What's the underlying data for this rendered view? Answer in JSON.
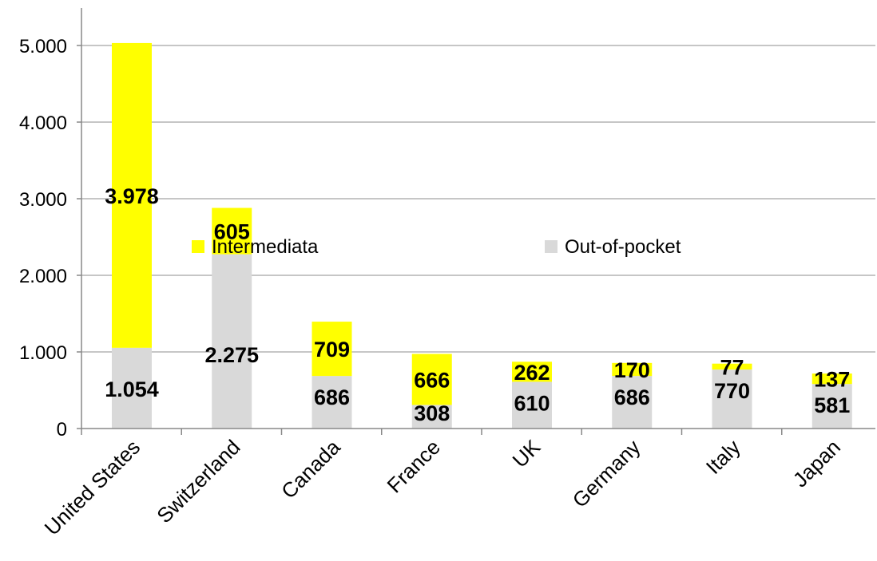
{
  "chart_data": {
    "type": "bar",
    "stacked": true,
    "categories": [
      "United States",
      "Switzerland",
      "Canada",
      "France",
      "UK",
      "Germany",
      "Italy",
      "Japan"
    ],
    "series": [
      {
        "name": "Out-of-pocket",
        "color": "#d9d9d9",
        "values": [
          1054,
          2275,
          686,
          308,
          610,
          686,
          770,
          581
        ],
        "labels": [
          "1.054",
          "2.275",
          "686",
          "308",
          "610",
          "686",
          "770",
          "581"
        ]
      },
      {
        "name": "Intermediata",
        "color": "#ffff00",
        "values": [
          3978,
          605,
          709,
          666,
          262,
          170,
          77,
          137
        ],
        "labels": [
          "3.978",
          "605",
          "709",
          "666",
          "262",
          "170",
          "77",
          "137"
        ]
      }
    ],
    "ylim": [
      0,
      5000
    ],
    "yticks": [
      0,
      1000,
      2000,
      3000,
      4000,
      5000
    ],
    "ytick_labels": [
      "0",
      "1.000",
      "2.000",
      "3.000",
      "4.000",
      "5.000"
    ],
    "grid": true,
    "legend": [
      {
        "name": "Intermediata",
        "color": "#ffff00"
      },
      {
        "name": "Out-of-pocket",
        "color": "#d9d9d9"
      }
    ],
    "legend_placement": "inside-top-center"
  }
}
